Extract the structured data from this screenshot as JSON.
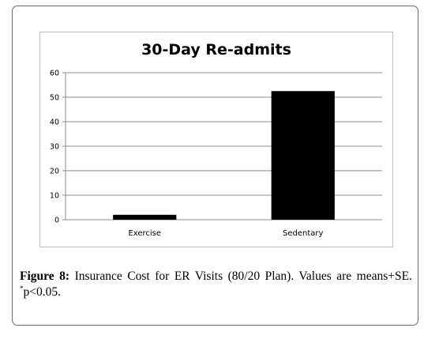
{
  "chart_data": {
    "type": "bar",
    "title": "30-Day Re-admits",
    "categories": [
      "Exercise",
      "Sedentary"
    ],
    "values": [
      2,
      52.5
    ],
    "ylim": [
      0,
      60
    ],
    "yticks": [
      0,
      10,
      20,
      30,
      40,
      50,
      60
    ],
    "grid": true,
    "legend": "none",
    "bar_color": "#000000",
    "grid_color": "#8c8c8c"
  },
  "caption": {
    "label": "Figure 8:",
    "text_before": "Insurance Cost for ER Visits (80/20 Plan). Values are means+SE. ",
    "superscript": "*",
    "text_after": "p<0.05."
  }
}
